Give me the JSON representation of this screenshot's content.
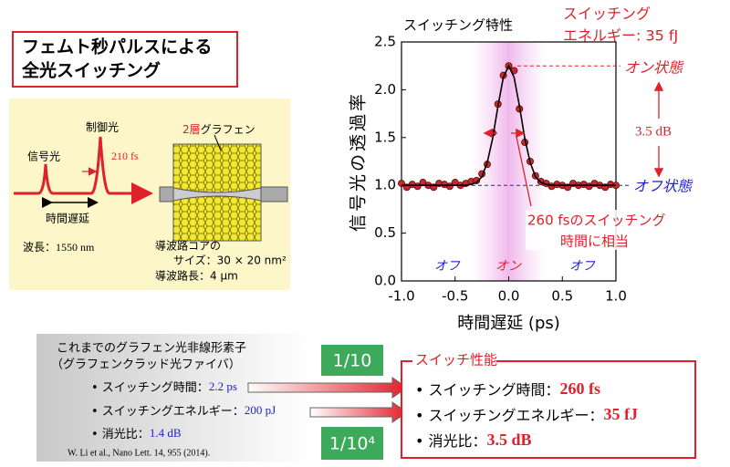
{
  "title_box": {
    "lines": [
      "フェムト秒パルスによる",
      "全光スイッチング"
    ]
  },
  "schematic": {
    "signal_light": "信号光",
    "control_light": "制御光",
    "pulse_width": "210 fs",
    "time_delay": "時間遅延",
    "graphene_layers": "2層",
    "graphene": "グラフェン",
    "wavelength": "波長：1550 nm",
    "core_size_lines": [
      "導波路コアの",
      "サイズ：30 × 20 nm²"
    ],
    "length": "導波路長：4 μm"
  },
  "chart_data": {
    "type": "scatter",
    "title": "スイッチング特性",
    "x_label": "時間遅延 (ps)",
    "y_label": "信号光の透過率",
    "x": [
      -1.0,
      -0.95,
      -0.9,
      -0.85,
      -0.8,
      -0.75,
      -0.7,
      -0.65,
      -0.6,
      -0.55,
      -0.5,
      -0.45,
      -0.4,
      -0.35,
      -0.3,
      -0.25,
      -0.2,
      -0.15,
      -0.1,
      -0.05,
      0,
      0.05,
      0.1,
      0.15,
      0.2,
      0.25,
      0.3,
      0.35,
      0.4,
      0.45,
      0.5,
      0.55,
      0.6,
      0.65,
      0.7,
      0.75,
      0.8,
      0.85,
      0.9,
      0.95,
      1.0
    ],
    "series": [
      {
        "mode": "markers",
        "color": "#c8282d",
        "values": [
          1.02,
          0.98,
          1.01,
          0.99,
          1.03,
          1.0,
          0.98,
          1.02,
          1.01,
          0.99,
          1.03,
          1.0,
          1.02,
          1.04,
          1.05,
          1.12,
          1.22,
          1.55,
          1.85,
          2.15,
          2.25,
          2.2,
          1.8,
          1.45,
          1.25,
          1.1,
          1.04,
          1.02,
          0.99,
          1.01,
          1.0,
          0.98,
          1.02,
          1.0,
          1.01,
          0.99,
          1.02,
          1.0,
          0.98,
          1.01,
          1.0
        ]
      },
      {
        "mode": "line",
        "color": "#000000",
        "values": [
          1.0,
          1.0,
          1.0,
          1.0,
          1.0,
          1.0,
          1.0,
          1.0,
          1.0,
          1.0,
          1.0,
          1.0,
          1.0,
          1.01,
          1.03,
          1.09,
          1.24,
          1.49,
          1.83,
          2.13,
          2.25,
          2.13,
          1.83,
          1.49,
          1.24,
          1.09,
          1.03,
          1.01,
          1.0,
          1.0,
          1.0,
          1.0,
          1.0,
          1.0,
          1.0,
          1.0,
          1.0,
          1.0,
          1.0,
          1.0,
          1.0
        ]
      }
    ],
    "xlim": [
      -1.0,
      1.0
    ],
    "xticks": [
      {
        "value": -1,
        "label": "-1.0"
      },
      -0.5,
      {
        "value": 0,
        "label": "0.0"
      },
      0.5,
      {
        "value": 1,
        "label": "1.0"
      }
    ],
    "ylim": [
      0,
      2.5
    ],
    "yticks": [
      {
        "value": 0,
        "label": "0.0"
      },
      0.5,
      {
        "value": 1,
        "label": "1.0"
      },
      1.5,
      {
        "value": 2,
        "label": "2.0"
      },
      2.5
    ],
    "highlight_range": [
      -0.35,
      0.35
    ],
    "on_level": 2.25,
    "off_level": 1.0,
    "region_labels": [
      "オフ",
      "オン",
      "オフ"
    ],
    "energy_lines": [
      "スイッチング",
      "エネルギー: 35 fJ"
    ],
    "on_state": "オン状態",
    "off_state": "オフ状態",
    "extinction": "3.5 dB",
    "width_note_lines": [
      "260 fsのスイッチング",
      "時間に相当"
    ]
  },
  "previous": {
    "title_lines": [
      "これまでのグラフェン光非線形素子",
      "（グラフェンクラッド光ファイバ）"
    ],
    "items": [
      {
        "label": "• スイッチング時間：",
        "value": "2.2 ps"
      },
      {
        "label": "• スイッチングエネルギー：",
        "value": "200 pJ"
      },
      {
        "label": "• 消光比：",
        "value": "1.4 dB"
      }
    ],
    "reference": "W. Li et al., Nano Lett. 14, 955 (2014)."
  },
  "improvements": [
    "1/10",
    "1/10⁴"
  ],
  "performance": {
    "title": "スイッチ性能",
    "items": [
      {
        "label": "• スイッチング時間：",
        "value": "260 fs"
      },
      {
        "label": "• スイッチングエネルギー：",
        "value": "35 fJ"
      },
      {
        "label": "• 消光比：",
        "value": "3.5 dB"
      }
    ]
  }
}
